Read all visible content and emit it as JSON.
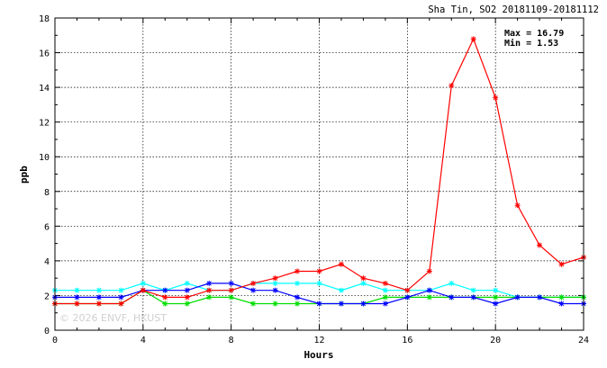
{
  "chart_data": {
    "type": "line",
    "title": "Sha Tin, SO2 20181109-20181112",
    "xlabel": "Hours",
    "ylabel": "ppb",
    "xlim": [
      0,
      24
    ],
    "ylim": [
      0,
      18
    ],
    "xticks": [
      0,
      4,
      8,
      12,
      16,
      20,
      24
    ],
    "yticks": [
      0,
      2,
      4,
      6,
      8,
      10,
      12,
      14,
      16,
      18
    ],
    "grid": true,
    "annotations": {
      "max_text": "Max = 16.79",
      "min_text": "Min =  1.53"
    },
    "watermark": "© 2026  ENVF, HKUST",
    "series": [
      {
        "color": "#00ffff",
        "x": [
          0,
          1,
          2,
          3,
          4,
          5,
          6,
          7,
          8,
          9,
          10,
          11,
          12,
          13,
          14,
          15,
          16,
          17,
          18,
          19,
          20,
          21,
          22,
          23,
          24
        ],
        "values": [
          2.3,
          2.3,
          2.3,
          2.3,
          2.7,
          2.3,
          2.7,
          2.3,
          2.3,
          2.7,
          2.7,
          2.7,
          2.7,
          2.3,
          2.7,
          2.3,
          2.3,
          2.3,
          2.7,
          2.3,
          2.3,
          1.9,
          1.9,
          1.9,
          1.9
        ]
      },
      {
        "color": "#00dd00",
        "x": [
          0,
          1,
          2,
          3,
          4,
          5,
          6,
          7,
          8,
          9,
          10,
          11,
          12,
          13,
          14,
          15,
          16,
          17,
          18,
          19,
          20,
          21,
          22,
          23,
          24
        ],
        "values": [
          1.53,
          1.53,
          1.53,
          1.53,
          2.3,
          1.53,
          1.53,
          1.9,
          1.9,
          1.53,
          1.53,
          1.53,
          1.53,
          1.53,
          1.53,
          1.9,
          1.9,
          1.9,
          1.9,
          1.9,
          1.9,
          1.9,
          1.9,
          1.9,
          1.9
        ]
      },
      {
        "color": "#0000ff",
        "x": [
          0,
          1,
          2,
          3,
          4,
          5,
          6,
          7,
          8,
          9,
          10,
          11,
          12,
          13,
          14,
          15,
          16,
          17,
          18,
          19,
          20,
          21,
          22,
          23,
          24
        ],
        "values": [
          1.9,
          1.9,
          1.9,
          1.9,
          2.3,
          2.3,
          2.3,
          2.7,
          2.7,
          2.3,
          2.3,
          1.9,
          1.53,
          1.53,
          1.53,
          1.53,
          1.9,
          2.3,
          1.9,
          1.9,
          1.53,
          1.9,
          1.9,
          1.53,
          1.53
        ]
      },
      {
        "color": "#ff0000",
        "x": [
          0,
          1,
          2,
          3,
          4,
          5,
          6,
          7,
          8,
          9,
          10,
          11,
          12,
          13,
          14,
          15,
          16,
          17,
          18,
          19,
          20,
          21,
          22,
          23,
          24
        ],
        "values": [
          1.53,
          1.53,
          1.53,
          1.53,
          2.3,
          1.9,
          1.9,
          2.3,
          2.3,
          2.7,
          3.0,
          3.4,
          3.4,
          3.8,
          3.0,
          2.7,
          2.3,
          3.4,
          14.1,
          16.79,
          13.4,
          7.2,
          4.9,
          3.8,
          4.2
        ]
      }
    ]
  }
}
